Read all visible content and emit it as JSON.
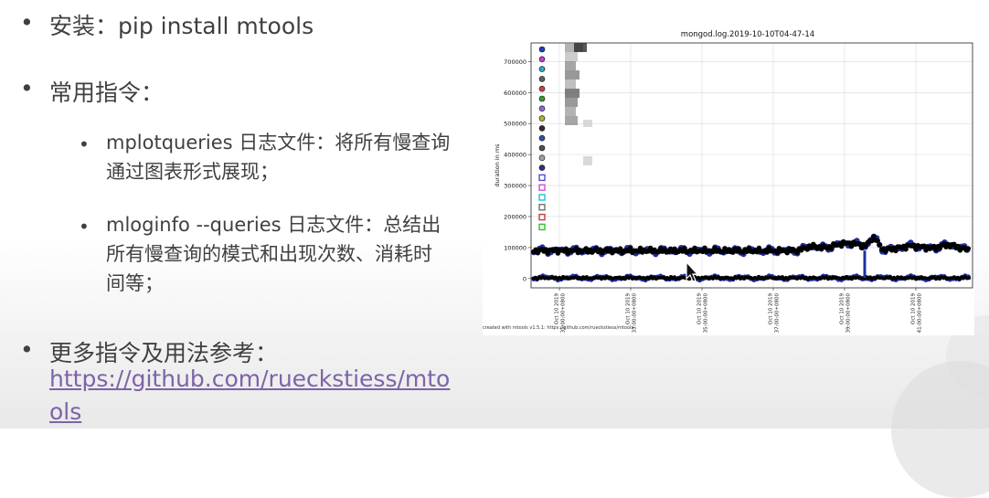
{
  "slide": {
    "install_label": "安装：pip install mtools",
    "common_cmds_label": "常用指令：",
    "sub1_line1": "mplotqueries 日志文件：将所有慢查询",
    "sub1_line2": "通过图表形式展现；",
    "sub2_line1": "mloginfo --queries 日志文件：总结出",
    "sub2_line2": "所有慢查询的模式和出现次数、消耗时",
    "sub2_line3": "间等；",
    "more_label": "更多指令及用法参考：",
    "link_line1": "https://github.com/rueckstiess/mto",
    "link_line2": "ols"
  },
  "chart_data": {
    "type": "scatter",
    "title": "mongod.log.2019-10-10T04-47-14",
    "ylabel": "duration in ms",
    "xlabel": "",
    "ylim": [
      -30000,
      760000
    ],
    "yticks": [
      "0",
      "100000",
      "200000",
      "300000",
      "400000",
      "500000",
      "600000",
      "700000"
    ],
    "xticks": [
      "Oct 10 2019\n31:00:00+0800",
      "Oct 10 2019\n33:00:00+0800",
      "Oct 10 2019\n35:00:00+0800",
      "Oct 10 2019\n37:00:00+0800",
      "Oct 10 2019\n39:00:00+0800",
      "Oct 10 2019\n41:00:00+0800"
    ],
    "grid": true,
    "legend_position": "top-left",
    "legend_marker_colors": [
      "#1f3fbf",
      "#c040c0",
      "#20b0c0",
      "#606060",
      "#d04040",
      "#30a030",
      "#8b6bd0",
      "#b0b030",
      "#303030",
      "#3050a0",
      "#505050",
      "#a0a0a0",
      "#303080",
      "#5050d0",
      "#d050d0",
      "#20c0d0",
      "#707070",
      "#c04040",
      "#30c030"
    ],
    "footer": "created with mtools v1.5.1: https://github.com/rueckstiess/mtools",
    "series_levels_ms": [
      {
        "name": "",
        "level": 90000,
        "color": "#000000"
      },
      {
        "name": "",
        "level": 90000,
        "color": "#1f2f9f"
      },
      {
        "name": "",
        "level": 2000,
        "color": "#000000"
      },
      {
        "name": "",
        "level": 2000,
        "color": "#1f2f9f"
      }
    ]
  }
}
